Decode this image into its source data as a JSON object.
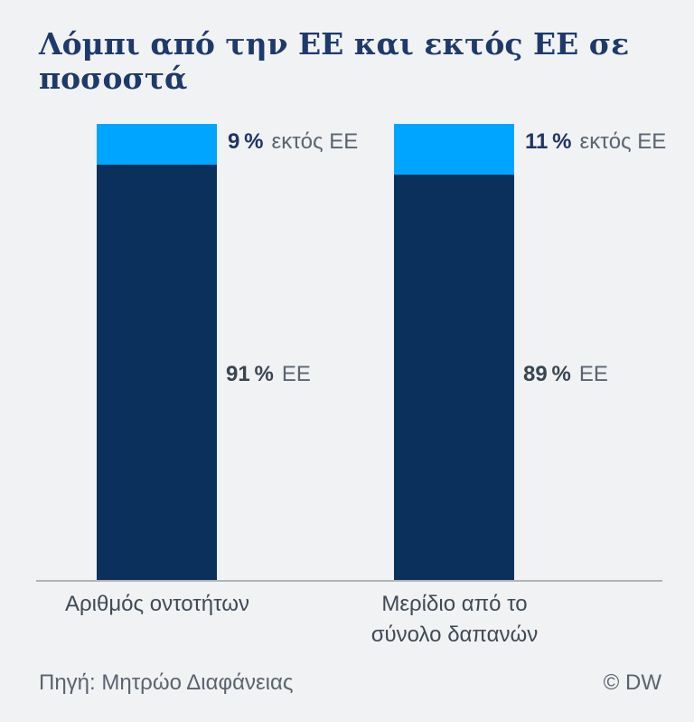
{
  "title": "Λόμπι από την ΕΕ και εκτός ΕΕ σε ποσοστά",
  "colors": {
    "background": "#f1f2f4",
    "eu_segment": "#0b305c",
    "non_eu_segment": "#00a5ff",
    "title_text": "#1e3a6b",
    "pct_top_text": "#1e3464",
    "pct_mid_text": "#3a4552",
    "suffix_text": "#5b6572",
    "category_text": "#3f4a55",
    "footer_text": "#5a646f",
    "axis_line": "#b0b4b8"
  },
  "chart_data": {
    "type": "bar",
    "stacked": true,
    "unit": "%",
    "title": "Λόμπι από την ΕΕ και εκτός ΕΕ σε ποσοστά",
    "categories": [
      "Αριθμός οντοτήτων",
      "Μερίδιο από το σύνολο δαπανών"
    ],
    "series": [
      {
        "name": "ΕΕ",
        "values": [
          91,
          89
        ],
        "color": "#0b305c"
      },
      {
        "name": "εκτός ΕΕ",
        "values": [
          9,
          11
        ],
        "color": "#00a5ff"
      }
    ],
    "ylim": [
      0,
      100
    ],
    "grid": false,
    "legend": "inline-annotations"
  },
  "bars": [
    {
      "category_lines": [
        "Αριθμός οντοτήτων",
        ""
      ],
      "eu_pct": 91,
      "non_eu_pct": 9,
      "top_label": {
        "value": "9 %",
        "suffix": "εκτός ΕΕ"
      },
      "mid_label": {
        "value": "91 %",
        "suffix": "ΕΕ"
      }
    },
    {
      "category_lines": [
        "Μερίδιο από το",
        "σύνολο δαπανών"
      ],
      "eu_pct": 89,
      "non_eu_pct": 11,
      "top_label": {
        "value": "11 %",
        "suffix": "εκτός ΕΕ"
      },
      "mid_label": {
        "value": "89 %",
        "suffix": "ΕΕ"
      }
    }
  ],
  "footer": {
    "source": "Πηγή: Μητρώο Διαφάνειας",
    "copyright": "© DW"
  }
}
